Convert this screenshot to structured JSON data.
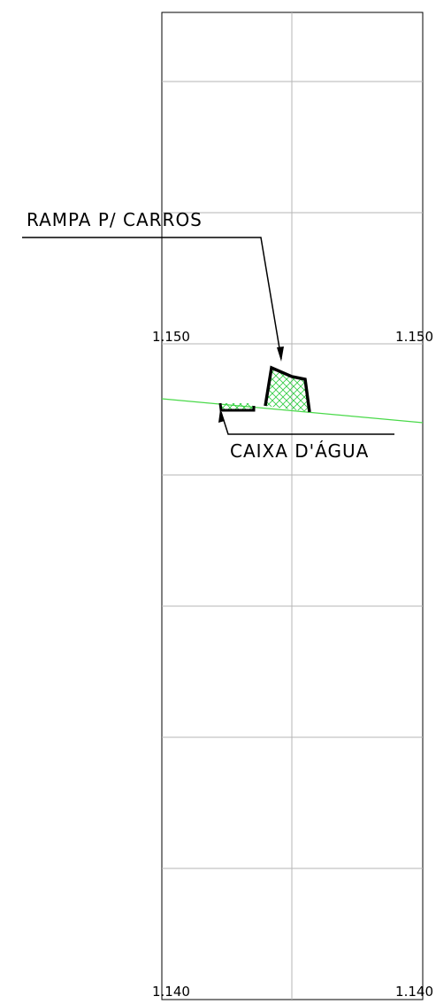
{
  "labels": {
    "ramp": "RAMPA P/ CARROS",
    "tank": "CAIXA D'ÁGUA"
  },
  "levels": {
    "upper": {
      "left": "1.150",
      "right": "1.150"
    },
    "lower": {
      "left": "1.140",
      "right": "1.140"
    }
  }
}
